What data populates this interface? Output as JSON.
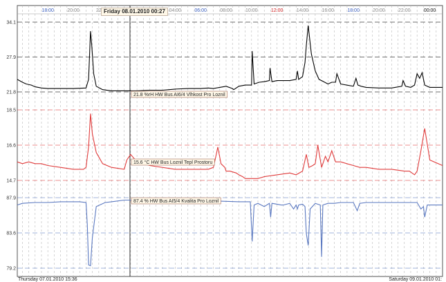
{
  "chart_data": {
    "type": "line",
    "cursor_label": "Friday 08.01.2010 00:27",
    "start_label": "Thursday 07.01.2010 15:36",
    "end_label": "Saturday 09.01.2010 01:",
    "x_ticks": [
      {
        "label": "18:00",
        "h": 18,
        "color": "#3a5fc0"
      },
      {
        "label": "20:00",
        "h": 20,
        "color": "#888888"
      },
      {
        "label": "22",
        "h": 22,
        "color": "#888888"
      },
      {
        "label": "04:00",
        "h": 28,
        "color": "#888888"
      },
      {
        "label": "06:00",
        "h": 30,
        "color": "#3a5fc0"
      },
      {
        "label": "08:00",
        "h": 32,
        "color": "#888888"
      },
      {
        "label": "10:00",
        "h": 34,
        "color": "#888888"
      },
      {
        "label": "12:00",
        "h": 36,
        "color": "#d02020"
      },
      {
        "label": "14:00",
        "h": 38,
        "color": "#888888"
      },
      {
        "label": "16:00",
        "h": 40,
        "color": "#888888"
      },
      {
        "label": "18:00",
        "h": 42,
        "color": "#3a5fc0"
      },
      {
        "label": "20:00",
        "h": 44,
        "color": "#888888"
      },
      {
        "label": "22:00",
        "h": 46,
        "color": "#888888"
      },
      {
        "label": "00:00",
        "h": 48,
        "color": "#111111"
      }
    ],
    "series": [
      {
        "label": "21.8 %rH HW Bus AI6/4 Vlhkost Pro Loznil",
        "color": "#000000",
        "ticks": [
          "34.1",
          "27.9",
          "21.8"
        ],
        "min": 21.8,
        "max": 34.1,
        "x": [
          15.6,
          16.0,
          16.3,
          16.7,
          17.0,
          17.5,
          18.0,
          19.0,
          20.0,
          21.0,
          21.2,
          21.35,
          21.45,
          21.6,
          21.8,
          22.3,
          23.0,
          24.0,
          25.0,
          26.0,
          27.0,
          28.0,
          29.0,
          30.0,
          30.6,
          31.0,
          31.5,
          32.0,
          32.5,
          32.6,
          33.0,
          33.5,
          34.0,
          34.05,
          34.2,
          34.6,
          35.0,
          35.4,
          35.45,
          35.6,
          36.0,
          36.5,
          37.0,
          37.5,
          37.6,
          37.7,
          38.0,
          38.2,
          38.3,
          38.45,
          38.7,
          39.0,
          39.3,
          39.5,
          40.0,
          40.3,
          40.6,
          40.7,
          41.0,
          42.0,
          42.2,
          42.35,
          42.6,
          43.0,
          44.0,
          45.0,
          45.8,
          45.9,
          46.1,
          46.5,
          46.8,
          47.0,
          47.2,
          47.4,
          47.6,
          48.0,
          48.5,
          49.0
        ],
        "y": [
          24.0,
          23.5,
          23.2,
          23.0,
          22.7,
          22.5,
          22.4,
          22.4,
          22.4,
          22.5,
          24.0,
          32.5,
          30.0,
          25.0,
          22.8,
          22.2,
          22.0,
          22.0,
          22.0,
          22.1,
          22.1,
          22.3,
          22.4,
          22.4,
          22.5,
          22.4,
          22.6,
          22.8,
          22.4,
          22.2,
          22.8,
          23.0,
          23.0,
          29.0,
          23.2,
          23.5,
          23.6,
          23.8,
          26.0,
          23.6,
          23.8,
          23.8,
          23.8,
          24.0,
          25.5,
          24.0,
          24.5,
          27.0,
          30.0,
          33.5,
          28.5,
          25.5,
          24.0,
          23.8,
          23.2,
          23.5,
          23.5,
          25.0,
          23.2,
          22.8,
          24.2,
          23.0,
          22.8,
          22.6,
          22.5,
          22.5,
          22.8,
          23.8,
          22.8,
          22.6,
          23.0,
          25.0,
          24.2,
          25.2,
          23.0,
          22.6,
          22.6,
          22.6
        ]
      },
      {
        "label": "15.6 °C HW Bus Loznil Tepl Prostoru",
        "color": "#e03a3a",
        "ticks": [
          "18.5",
          "16.6",
          "14.7"
        ],
        "min": 14.7,
        "max": 18.5,
        "x": [
          15.6,
          16.0,
          16.5,
          17.0,
          17.5,
          18.0,
          19.0,
          20.0,
          20.8,
          21.0,
          21.2,
          21.35,
          21.5,
          21.8,
          22.3,
          23.0,
          24.0,
          24.2,
          24.5,
          25.0,
          25.5,
          26.0,
          28.0,
          30.0,
          30.6,
          31.0,
          31.2,
          31.35,
          31.6,
          31.9,
          32.0,
          32.3,
          32.8,
          33.0,
          33.3,
          33.5,
          34.0,
          34.5,
          35.0,
          36.0,
          37.0,
          37.5,
          38.0,
          38.3,
          38.5,
          38.8,
          39.0,
          39.2,
          39.5,
          39.8,
          40.0,
          40.3,
          40.6,
          41.0,
          42.0,
          42.5,
          43.0,
          44.0,
          45.0,
          46.0,
          46.4,
          46.8,
          47.0,
          47.3,
          47.6,
          48.0,
          49.0
        ],
        "y": [
          15.7,
          15.6,
          15.7,
          15.6,
          15.6,
          15.5,
          15.4,
          15.3,
          15.3,
          15.4,
          16.5,
          18.3,
          17.2,
          16.2,
          15.6,
          15.4,
          15.3,
          15.8,
          16.1,
          15.7,
          15.6,
          15.5,
          15.3,
          15.3,
          15.3,
          15.4,
          16.0,
          16.5,
          15.6,
          15.4,
          15.2,
          15.2,
          15.1,
          15.0,
          14.9,
          14.8,
          14.8,
          14.8,
          14.9,
          15.0,
          15.1,
          15.0,
          15.2,
          16.1,
          15.4,
          15.5,
          15.6,
          16.6,
          15.4,
          16.0,
          15.7,
          16.3,
          15.7,
          15.7,
          15.5,
          15.4,
          15.4,
          15.3,
          15.3,
          15.2,
          15.2,
          15.0,
          15.2,
          16.3,
          17.5,
          15.8,
          15.5
        ]
      },
      {
        "label": "87.4 % HW Bus AI5/4 Kvalita Pro Loznil",
        "color": "#5a78c0",
        "ticks": [
          "87.9",
          "83.6",
          "79.2"
        ],
        "min": 79.2,
        "max": 87.9,
        "x": [
          15.6,
          16.0,
          17.0,
          18.0,
          19.0,
          20.0,
          20.5,
          21.0,
          21.1,
          21.2,
          21.35,
          21.5,
          21.8,
          22.5,
          23.0,
          24.0,
          25.0,
          26.0,
          28.0,
          30.0,
          31.0,
          33.0,
          33.9,
          34.05,
          34.2,
          34.5,
          35.0,
          35.4,
          35.5,
          35.6,
          36.0,
          36.3,
          36.5,
          37.0,
          37.3,
          37.5,
          37.6,
          37.7,
          38.0,
          38.2,
          38.3,
          38.45,
          38.6,
          39.0,
          39.4,
          39.5,
          39.6,
          40.0,
          40.5,
          41.0,
          42.0,
          42.3,
          42.5,
          43.0,
          44.0,
          45.0,
          46.0,
          46.5,
          47.0,
          47.3,
          47.5,
          47.6,
          47.8,
          48.0,
          49.0
        ],
        "y": [
          87.0,
          87.2,
          87.3,
          87.3,
          87.4,
          87.4,
          87.4,
          87.3,
          84.5,
          79.6,
          79.5,
          83.0,
          86.8,
          87.3,
          87.4,
          87.6,
          87.6,
          87.6,
          87.6,
          87.6,
          87.5,
          87.4,
          87.4,
          82.5,
          87.0,
          87.2,
          86.8,
          87.2,
          85.5,
          87.2,
          87.1,
          87.0,
          87.0,
          87.2,
          86.5,
          87.0,
          86.5,
          87.0,
          87.1,
          86.8,
          83.5,
          82.0,
          86.5,
          87.2,
          87.0,
          80.6,
          87.0,
          87.2,
          87.2,
          87.3,
          87.3,
          86.3,
          87.2,
          87.3,
          87.3,
          87.3,
          87.3,
          87.3,
          87.3,
          86.5,
          86.8,
          85.5,
          87.0,
          87.0,
          87.0
        ]
      }
    ]
  }
}
